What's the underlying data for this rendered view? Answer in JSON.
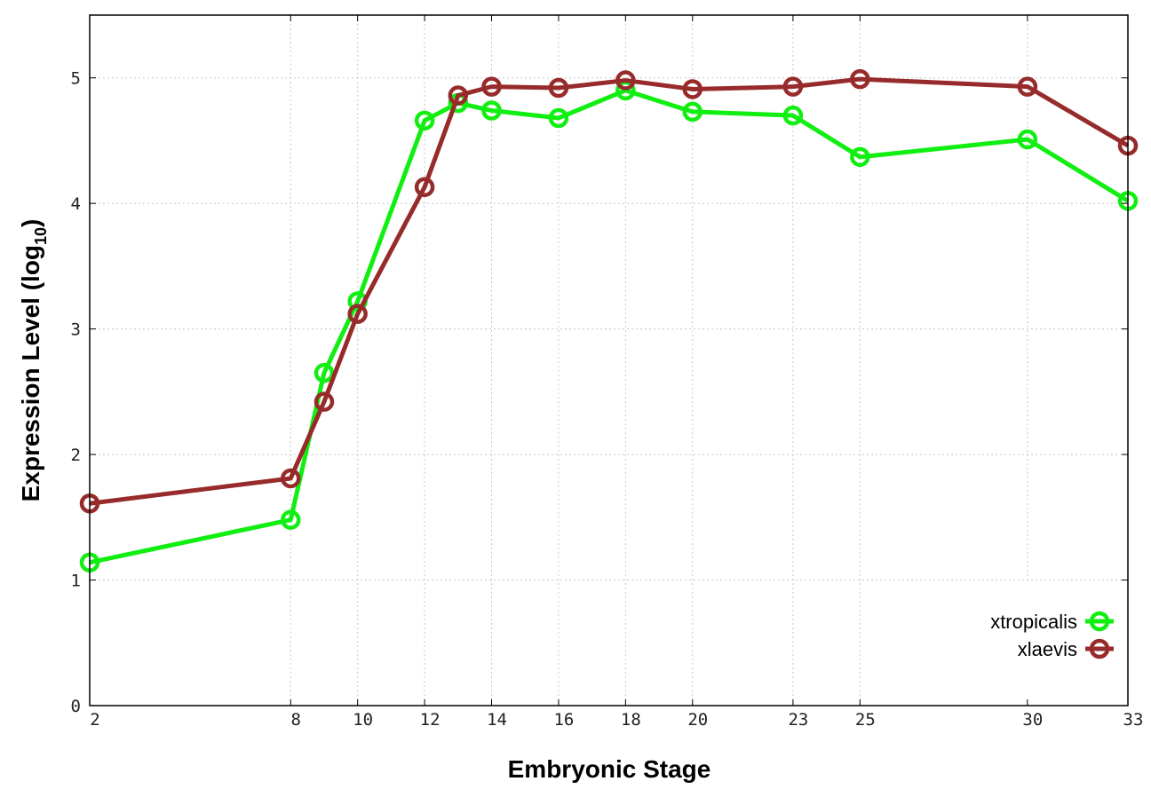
{
  "chart_data": {
    "type": "line",
    "title": "",
    "xlabel": "Embryonic Stage",
    "ylabel_main": "Expression Level (log",
    "ylabel_sub": "10",
    "ylabel_close": ")",
    "x": [
      2,
      8,
      9,
      10,
      12,
      13,
      14,
      16,
      18,
      20,
      23,
      25,
      30,
      33
    ],
    "xticks": [
      2,
      8,
      10,
      12,
      14,
      16,
      18,
      20,
      23,
      25,
      30,
      33
    ],
    "xlim": [
      2,
      33
    ],
    "ylim": [
      0,
      5.5
    ],
    "yticks": [
      0,
      1,
      2,
      3,
      4,
      5
    ],
    "grid": true,
    "legend_position": "bottom-right",
    "series": [
      {
        "name": "xtropicalis",
        "color": "#11ee11",
        "values": [
          1.14,
          1.48,
          2.65,
          3.22,
          4.66,
          4.8,
          4.74,
          4.68,
          4.9,
          4.73,
          4.7,
          4.37,
          4.51,
          4.02
        ]
      },
      {
        "name": "xlaevis",
        "color": "#972b2b",
        "values": [
          1.61,
          1.81,
          2.42,
          3.12,
          4.13,
          4.86,
          4.93,
          4.92,
          4.98,
          4.91,
          4.93,
          4.99,
          4.93,
          4.46
        ]
      }
    ]
  }
}
